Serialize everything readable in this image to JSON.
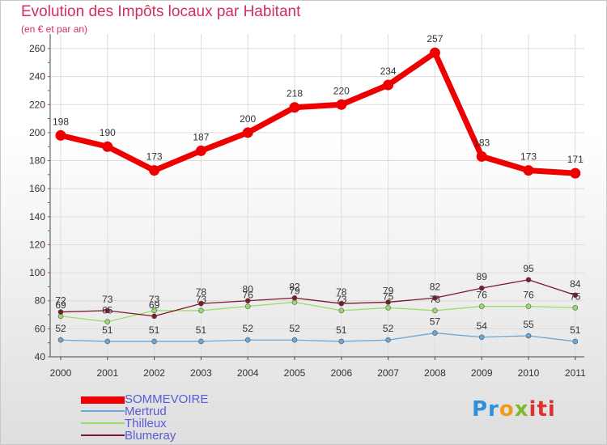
{
  "chart_data": {
    "type": "line",
    "title": "Evolution des Impôts locaux par Habitant",
    "subtitle": "(en € et par an)",
    "xlabel": "",
    "ylabel": "",
    "ylim": [
      40,
      260
    ],
    "yticks": [
      40,
      60,
      80,
      100,
      120,
      140,
      160,
      180,
      200,
      220,
      240,
      260
    ],
    "categories": [
      "2000",
      "2001",
      "2002",
      "2003",
      "2004",
      "2005",
      "2006",
      "2007",
      "2008",
      "2009",
      "2010",
      "2011"
    ],
    "series": [
      {
        "name": "SOMMEVOIRE",
        "color": "#ee0000",
        "values": [
          198,
          190,
          173,
          187,
          200,
          218,
          220,
          234,
          257,
          183,
          173,
          171
        ]
      },
      {
        "name": "Mertrud",
        "color": "#6aa6d6",
        "values": [
          52,
          51,
          51,
          51,
          52,
          52,
          51,
          52,
          57,
          54,
          55,
          51
        ]
      },
      {
        "name": "Thilleux",
        "color": "#99dd66",
        "values": [
          69,
          65,
          73,
          73,
          76,
          79,
          73,
          75,
          73,
          76,
          76,
          75
        ]
      },
      {
        "name": "Blumeray",
        "color": "#7a1a2a",
        "values": [
          72,
          73,
          69,
          78,
          80,
          82,
          78,
          79,
          82,
          89,
          95,
          84
        ]
      }
    ],
    "legend_position": "bottom-left"
  },
  "logo": {
    "p1": "Pr",
    "p2": "o",
    "p3": "x",
    "p4": "iti"
  }
}
